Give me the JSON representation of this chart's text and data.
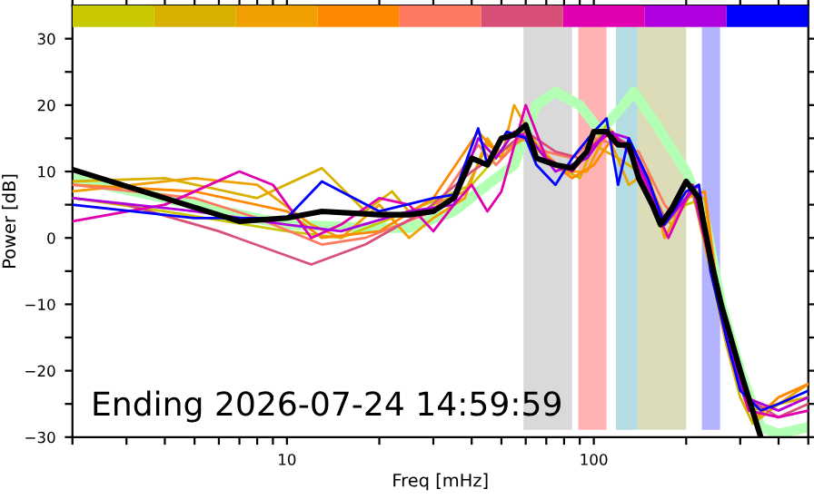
{
  "chart_data": {
    "type": "line",
    "xlabel": "Freq [mHz]",
    "ylabel": "Power [dB]",
    "log": "x",
    "grid": false,
    "legend": false,
    "xlim": [
      2,
      500
    ],
    "ylim": [
      -30,
      35
    ],
    "xticks": [
      {
        "value": 2,
        "label": null
      },
      {
        "value": 3,
        "label": null
      },
      {
        "value": 4,
        "label": null
      },
      {
        "value": 5,
        "label": null
      },
      {
        "value": 6,
        "label": null
      },
      {
        "value": 7,
        "label": null
      },
      {
        "value": 8,
        "label": null
      },
      {
        "value": 9,
        "label": null
      },
      10,
      {
        "value": 20,
        "label": null
      },
      {
        "value": 30,
        "label": null
      },
      {
        "value": 40,
        "label": null
      },
      {
        "value": 50,
        "label": null
      },
      {
        "value": 60,
        "label": null
      },
      {
        "value": 70,
        "label": null
      },
      {
        "value": 80,
        "label": null
      },
      {
        "value": 90,
        "label": null
      },
      100,
      {
        "value": 200,
        "label": null
      },
      {
        "value": 300,
        "label": null
      },
      {
        "value": 400,
        "label": null
      },
      {
        "value": 500,
        "label": null
      }
    ],
    "yticks": [
      {
        "value": -30,
        "label": "−30"
      },
      {
        "value": -25,
        "label": null
      },
      {
        "value": -20,
        "label": "−20"
      },
      {
        "value": -15,
        "label": null
      },
      {
        "value": -10,
        "label": "−10"
      },
      {
        "value": -5,
        "label": null
      },
      0,
      {
        "value": 5,
        "label": null
      },
      10,
      {
        "value": 15,
        "label": null
      },
      20,
      {
        "value": 25,
        "label": null
      },
      30
    ],
    "annotations": [
      "Ending 2026-07-24 14:59:59"
    ],
    "bands": [
      {
        "axis": "x",
        "from": 59,
        "to": 85,
        "color": "#d9d9d9"
      },
      {
        "axis": "x",
        "from": 89,
        "to": 110,
        "color": "#ffb3b3"
      },
      {
        "axis": "x",
        "from": 118,
        "to": 139,
        "color": "#b3dde0"
      },
      {
        "axis": "x",
        "from": 139,
        "to": 200,
        "color": "#dcdcb8"
      },
      {
        "axis": "x",
        "from": 225,
        "to": 258,
        "color": "#b3b3ff"
      }
    ],
    "series": [
      {
        "color": "#b3ffb3",
        "x": [
          2,
          5,
          10,
          20,
          25,
          35,
          45,
          55,
          65,
          75,
          90,
          105,
          125,
          135,
          160,
          200,
          230,
          260,
          300,
          350,
          400,
          500
        ],
        "values": [
          9,
          5,
          2,
          1.5,
          1.5,
          4,
          8,
          11,
          20,
          22,
          20,
          16,
          20,
          22,
          17,
          10,
          3,
          -10,
          -20,
          -28.5,
          -29.5,
          -28.5
        ]
      },
      {
        "color": "#c8c800",
        "x": [
          2,
          4,
          10,
          15,
          25,
          40,
          50,
          60,
          70,
          85,
          100,
          110,
          130,
          150,
          170,
          200,
          230,
          250,
          280,
          320,
          350,
          400,
          500
        ],
        "values": [
          6,
          4,
          1,
          0,
          4,
          8,
          13,
          15,
          12,
          10,
          14,
          17,
          13,
          6,
          2,
          5,
          6,
          -8,
          -18,
          -25,
          -27,
          -25,
          -24
        ]
      },
      {
        "color": "#d8b000",
        "x": [
          2,
          4,
          8,
          13,
          18,
          22,
          26,
          30,
          38,
          45,
          50,
          60,
          75,
          90,
          100,
          120,
          140,
          160,
          180,
          210,
          240,
          270,
          300,
          330,
          400,
          500
        ],
        "values": [
          8.5,
          9,
          6,
          10.5,
          4,
          7,
          3,
          5,
          7,
          14,
          13,
          16,
          11,
          9,
          14,
          12,
          10,
          4,
          2,
          7,
          -5,
          -16,
          -24,
          -28,
          -25,
          -24
        ]
      },
      {
        "color": "#f0a000",
        "x": [
          2,
          5,
          8,
          12,
          15,
          20,
          25,
          30,
          38,
          45,
          50,
          55,
          65,
          80,
          95,
          110,
          130,
          150,
          170,
          200,
          220,
          250,
          280,
          320,
          400,
          500
        ],
        "values": [
          7,
          9,
          8,
          2,
          0,
          5,
          0,
          3,
          6,
          15,
          12,
          20,
          14,
          10,
          10,
          16,
          8,
          10,
          0,
          6,
          7,
          -8,
          -18,
          -26,
          -25,
          -22
        ]
      },
      {
        "color": "#ff8800",
        "x": [
          2,
          5,
          10,
          13,
          20,
          30,
          42,
          50,
          60,
          70,
          85,
          100,
          115,
          140,
          170,
          200,
          230,
          260,
          300,
          340,
          400,
          500
        ],
        "values": [
          8,
          7,
          4,
          0,
          1,
          6,
          16,
          12,
          16,
          12,
          9,
          11,
          15,
          12,
          3,
          6,
          7,
          -12,
          -22,
          -27,
          -24,
          -22
        ]
      },
      {
        "color": "#ff7860",
        "x": [
          2,
          5,
          8,
          13,
          18,
          30,
          42,
          48,
          58,
          70,
          85,
          100,
          120,
          140,
          170,
          185,
          210,
          235,
          265,
          310,
          400,
          500
        ],
        "values": [
          8,
          6,
          3,
          -1,
          0,
          4,
          14,
          11,
          15,
          13,
          12,
          15,
          14,
          13,
          5,
          3,
          8,
          -2,
          -14,
          -24,
          -26,
          -24
        ]
      },
      {
        "color": "#d85078",
        "x": [
          2,
          3,
          6,
          12,
          18,
          28,
          40,
          50,
          60,
          75,
          90,
          110,
          130,
          150,
          170,
          210,
          240,
          270,
          310,
          400,
          500
        ],
        "values": [
          6,
          5,
          1,
          -4,
          -1,
          4,
          10,
          13,
          16,
          13,
          12,
          16,
          14,
          8,
          3,
          7,
          -4,
          -14,
          -24,
          -27,
          -25
        ]
      },
      {
        "color": "#e000b0",
        "x": [
          2,
          4,
          7,
          9,
          12,
          15,
          20,
          25,
          30,
          35,
          40,
          45,
          50,
          60,
          70,
          85,
          100,
          115,
          135,
          160,
          175,
          210,
          250,
          280,
          320,
          400,
          500
        ],
        "values": [
          2.5,
          5,
          10,
          8,
          0,
          2,
          6,
          5,
          1,
          5,
          8,
          4,
          7,
          20,
          12,
          10,
          14,
          16,
          12,
          4,
          0,
          8,
          -8,
          -18,
          -26,
          -27,
          -26
        ]
      },
      {
        "color": "#b000e0",
        "x": [
          2,
          5,
          10,
          15,
          25,
          35,
          42,
          48,
          55,
          62,
          75,
          95,
          110,
          130,
          150,
          170,
          200,
          220,
          245,
          275,
          310,
          400,
          500
        ],
        "values": [
          6,
          4,
          2,
          1,
          4,
          5,
          15,
          12,
          16,
          15,
          10,
          12,
          16,
          15,
          8,
          2,
          6,
          8,
          -6,
          -16,
          -24,
          -26,
          -24
        ]
      },
      {
        "color": "#0000ff",
        "x": [
          2,
          5,
          10,
          13,
          20,
          30,
          35,
          42,
          45,
          52,
          60,
          65,
          75,
          85,
          100,
          110,
          120,
          130,
          150,
          170,
          200,
          220,
          240,
          270,
          300,
          350,
          400,
          500
        ],
        "values": [
          5,
          3,
          3,
          8.5,
          4,
          6,
          6.5,
          16.5,
          11,
          16,
          15,
          11,
          8,
          12,
          16,
          18,
          8,
          15,
          9,
          2,
          7,
          8,
          -5,
          -15,
          -23,
          -26,
          -25,
          -23
        ]
      },
      {
        "color": "#000000",
        "x": [
          2,
          4,
          7,
          10,
          13,
          20,
          25,
          30,
          35,
          40,
          45,
          50,
          55,
          60,
          65,
          75,
          85,
          95,
          100,
          110,
          120,
          130,
          140,
          155,
          165,
          180,
          200,
          220,
          240,
          260,
          300,
          350
        ],
        "values": [
          10.3,
          6,
          2.5,
          3,
          4,
          3.5,
          3.5,
          4,
          6,
          12,
          11,
          15,
          15.5,
          17,
          12,
          11,
          10.5,
          13,
          16,
          16,
          14,
          14,
          9,
          5,
          2,
          4.5,
          8.5,
          6,
          -3,
          -10,
          -20,
          -30
        ]
      }
    ]
  }
}
